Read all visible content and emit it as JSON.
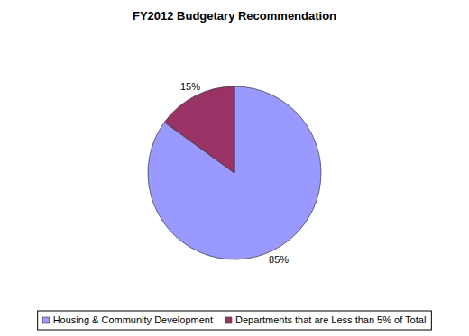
{
  "chart_data": {
    "type": "pie",
    "title": "FY2012 Budgetary Recommendation",
    "categories": [
      "Housing & Community Development",
      "Departments that are Less than 5% of Total"
    ],
    "values": [
      85,
      15
    ],
    "value_labels": [
      "85%",
      "15%"
    ],
    "colors": [
      "#9999ff",
      "#993366"
    ],
    "data_labels": true,
    "legend": "bottom"
  }
}
